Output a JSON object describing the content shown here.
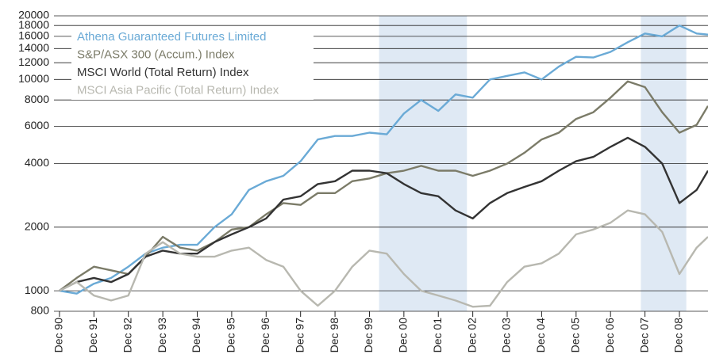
{
  "chart_data": {
    "type": "line",
    "log_scale": true,
    "grid": true,
    "legend": "top-left",
    "xlim": [
      1990.76,
      2009.75
    ],
    "ylim": [
      800,
      20000
    ],
    "yticks": [
      800,
      1000,
      2000,
      4000,
      6000,
      8000,
      10000,
      12000,
      14000,
      16000,
      18000,
      20000
    ],
    "xticks": [
      {
        "value": 1990.92,
        "label": "Dec 90"
      },
      {
        "value": 1991.92,
        "label": "Dec 91"
      },
      {
        "value": 1992.92,
        "label": "Dec 92"
      },
      {
        "value": 1993.92,
        "label": "Dec 93"
      },
      {
        "value": 1994.92,
        "label": "Dec 94"
      },
      {
        "value": 1995.92,
        "label": "Dec 95"
      },
      {
        "value": 1996.92,
        "label": "Dec 96"
      },
      {
        "value": 1997.92,
        "label": "Dec 97"
      },
      {
        "value": 1998.92,
        "label": "Dec 98"
      },
      {
        "value": 1999.92,
        "label": "Dec 99"
      },
      {
        "value": 2000.92,
        "label": "Dec 00"
      },
      {
        "value": 2001.92,
        "label": "Dec 01"
      },
      {
        "value": 2002.92,
        "label": "Dec 02"
      },
      {
        "value": 2003.92,
        "label": "Dec 03"
      },
      {
        "value": 2004.92,
        "label": "Dec 04"
      },
      {
        "value": 2005.92,
        "label": "Dec 05"
      },
      {
        "value": 2006.92,
        "label": "Dec 06"
      },
      {
        "value": 2007.92,
        "label": "Dec 07"
      },
      {
        "value": 2008.92,
        "label": "Dec 08"
      }
    ],
    "shaded_regions": [
      [
        2000.2,
        2002.75
      ],
      [
        2007.8,
        2009.12
      ]
    ],
    "shade_color": "#dfe9f4",
    "x": [
      1990.92,
      1991.42,
      1991.92,
      1992.42,
      1992.92,
      1993.42,
      1993.92,
      1994.42,
      1994.92,
      1995.42,
      1995.92,
      1996.42,
      1996.92,
      1997.42,
      1997.92,
      1998.42,
      1998.92,
      1999.42,
      1999.92,
      2000.42,
      2000.92,
      2001.42,
      2001.92,
      2002.42,
      2002.92,
      2003.42,
      2003.92,
      2004.42,
      2004.92,
      2005.42,
      2005.92,
      2006.42,
      2006.92,
      2007.42,
      2007.92,
      2008.42,
      2008.92,
      2009.42,
      2009.75
    ],
    "series": [
      {
        "name": "Athena Guaranteed Futures Limited",
        "color": "#6aaad6",
        "values": [
          1000,
          970,
          1080,
          1150,
          1300,
          1500,
          1600,
          1650,
          1650,
          2000,
          2300,
          3000,
          3300,
          3500,
          4100,
          5200,
          5400,
          5400,
          5600,
          5500,
          6900,
          8000,
          7100,
          8500,
          8200,
          10000,
          10400,
          10800,
          10000,
          11500,
          12800,
          12700,
          13500,
          15000,
          16500,
          16000,
          18000,
          16500,
          16300
        ]
      },
      {
        "name": "S&P/ASX 300 (Accum.) Index",
        "color": "#7b7b68",
        "values": [
          1000,
          1150,
          1300,
          1250,
          1200,
          1450,
          1800,
          1600,
          1550,
          1700,
          1950,
          2000,
          2300,
          2600,
          2550,
          2900,
          2900,
          3300,
          3400,
          3600,
          3700,
          3900,
          3700,
          3700,
          3500,
          3700,
          4000,
          4500,
          5200,
          5600,
          6500,
          7000,
          8200,
          9800,
          9200,
          7000,
          5600,
          6100,
          7500
        ]
      },
      {
        "name": "MSCI World (Total Return) Index",
        "color": "#333333",
        "values": [
          1000,
          1100,
          1150,
          1100,
          1200,
          1450,
          1550,
          1500,
          1500,
          1700,
          1850,
          2000,
          2200,
          2700,
          2800,
          3200,
          3300,
          3700,
          3700,
          3600,
          3200,
          2900,
          2800,
          2400,
          2200,
          2600,
          2900,
          3100,
          3300,
          3700,
          4100,
          4300,
          4800,
          5300,
          4800,
          4000,
          2600,
          3000,
          3700
        ]
      },
      {
        "name": "MSCI Asia Pacific (Total Return) Index",
        "color": "#b8b8b0",
        "values": [
          1000,
          1100,
          950,
          900,
          950,
          1500,
          1700,
          1500,
          1450,
          1450,
          1550,
          1600,
          1400,
          1300,
          1000,
          850,
          1000,
          1300,
          1550,
          1500,
          1200,
          1000,
          950,
          900,
          840,
          850,
          1100,
          1300,
          1350,
          1500,
          1850,
          1950,
          2100,
          2400,
          2300,
          1900,
          1200,
          1600,
          1800
        ]
      }
    ]
  }
}
